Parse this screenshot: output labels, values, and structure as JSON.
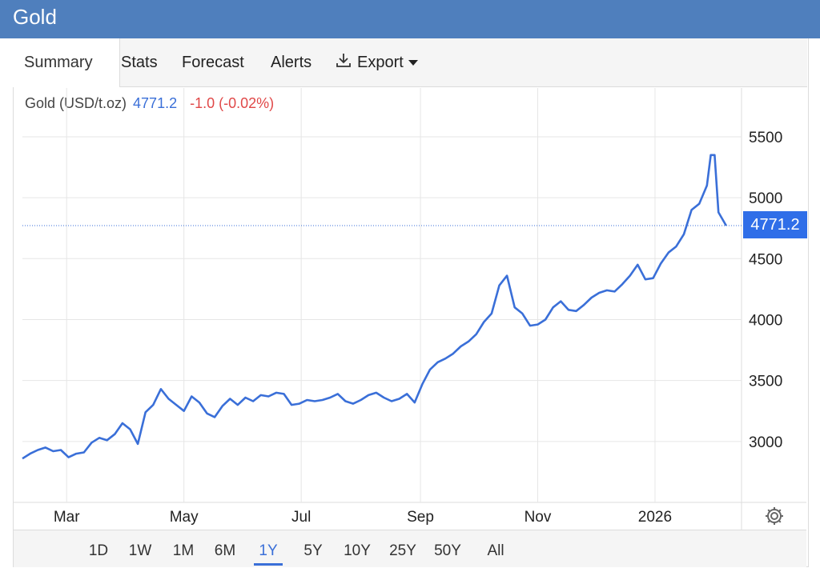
{
  "app": {
    "title": "Gold"
  },
  "tabs": [
    {
      "label": "Summary",
      "active": true
    },
    {
      "label": "Stats"
    },
    {
      "label": "Forecast"
    },
    {
      "label": "Alerts"
    }
  ],
  "export_label": "Export",
  "quote": {
    "name": "Gold (USD/t.oz)",
    "price": "4771.2",
    "change": "-1.0 (-0.02%)"
  },
  "colors": {
    "line": "#3a6fd8",
    "change_negative": "#e04848",
    "price_tag": "#2f6ee8",
    "header": "#4f7fbd"
  },
  "icons": {
    "export": "download-icon",
    "export_caret": "caret-down-icon",
    "settings": "gear-icon"
  },
  "ranges": [
    "1D",
    "1W",
    "1M",
    "6M",
    "1Y",
    "5Y",
    "10Y",
    "25Y",
    "50Y",
    "All"
  ],
  "active_range": "1Y",
  "chart_data": {
    "type": "line",
    "title": "",
    "xlabel": "",
    "ylabel": "",
    "x_tick_labels": [
      "Mar",
      "May",
      "Jul",
      "Sep",
      "Nov",
      "2026"
    ],
    "x_ticks": [
      "2025-03-01",
      "2025-05-01",
      "2025-07-01",
      "2025-09-01",
      "2025-11-01",
      "2026-01-01"
    ],
    "y_ticks": [
      3000,
      3500,
      4000,
      4500,
      5000,
      5500
    ],
    "ylim": [
      2500,
      5900
    ],
    "xlim": [
      "2025-02-06",
      "2026-02-15"
    ],
    "grid": true,
    "last_value_label": "4771.2",
    "series": [
      {
        "x": [
          "2025-02-06",
          "2025-02-10",
          "2025-02-14",
          "2025-02-18",
          "2025-02-22",
          "2025-02-26",
          "2025-03-02",
          "2025-03-06",
          "2025-03-10",
          "2025-03-14",
          "2025-03-18",
          "2025-03-22",
          "2025-03-26",
          "2025-03-30",
          "2025-04-03",
          "2025-04-07",
          "2025-04-11",
          "2025-04-15",
          "2025-04-19",
          "2025-04-23",
          "2025-04-27",
          "2025-05-01",
          "2025-05-05",
          "2025-05-09",
          "2025-05-13",
          "2025-05-17",
          "2025-05-21",
          "2025-05-25",
          "2025-05-29",
          "2025-06-02",
          "2025-06-06",
          "2025-06-10",
          "2025-06-14",
          "2025-06-18",
          "2025-06-22",
          "2025-06-26",
          "2025-06-30",
          "2025-07-04",
          "2025-07-08",
          "2025-07-12",
          "2025-07-16",
          "2025-07-20",
          "2025-07-24",
          "2025-07-28",
          "2025-08-01",
          "2025-08-05",
          "2025-08-09",
          "2025-08-13",
          "2025-08-17",
          "2025-08-21",
          "2025-08-25",
          "2025-08-29",
          "2025-09-02",
          "2025-09-06",
          "2025-09-10",
          "2025-09-14",
          "2025-09-18",
          "2025-09-22",
          "2025-09-26",
          "2025-09-30",
          "2025-10-04",
          "2025-10-08",
          "2025-10-12",
          "2025-10-16",
          "2025-10-20",
          "2025-10-24",
          "2025-10-28",
          "2025-11-01",
          "2025-11-05",
          "2025-11-09",
          "2025-11-13",
          "2025-11-17",
          "2025-11-21",
          "2025-11-25",
          "2025-11-29",
          "2025-12-03",
          "2025-12-07",
          "2025-12-11",
          "2025-12-15",
          "2025-12-19",
          "2025-12-23",
          "2025-12-27",
          "2025-12-31",
          "2026-01-04",
          "2026-01-08",
          "2026-01-12",
          "2026-01-16",
          "2026-01-20",
          "2026-01-24",
          "2026-01-28",
          "2026-01-30",
          "2026-02-01",
          "2026-02-03",
          "2026-02-07"
        ],
        "y": [
          2860,
          2900,
          2930,
          2950,
          2920,
          2930,
          2870,
          2900,
          2910,
          2990,
          3030,
          3010,
          3060,
          3150,
          3100,
          2980,
          3240,
          3300,
          3430,
          3350,
          3300,
          3250,
          3370,
          3320,
          3230,
          3200,
          3290,
          3350,
          3300,
          3360,
          3330,
          3380,
          3370,
          3400,
          3390,
          3300,
          3310,
          3340,
          3330,
          3340,
          3360,
          3390,
          3330,
          3310,
          3340,
          3380,
          3400,
          3360,
          3330,
          3350,
          3390,
          3320,
          3470,
          3590,
          3650,
          3680,
          3720,
          3780,
          3820,
          3880,
          3980,
          4050,
          4280,
          4360,
          4100,
          4050,
          3950,
          3960,
          4000,
          4100,
          4150,
          4080,
          4070,
          4120,
          4180,
          4220,
          4240,
          4230,
          4290,
          4360,
          4450,
          4330,
          4340,
          4460,
          4550,
          4600,
          4700,
          4900,
          4950,
          5100,
          5350,
          5350,
          4880,
          4771.2
        ]
      }
    ]
  }
}
